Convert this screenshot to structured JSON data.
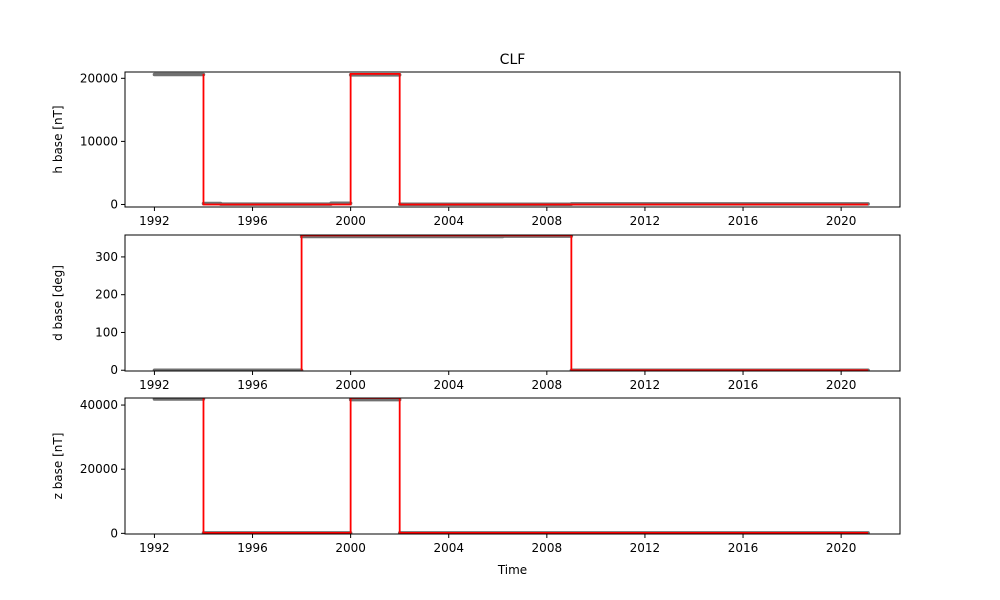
{
  "figure": {
    "title": "CLF",
    "xlabel": "Time"
  },
  "colors": {
    "measurement": "#707070",
    "baseline": "#ff0000",
    "axes": "#000000",
    "background": "#ffffff"
  },
  "chart_data": [
    {
      "type": "line",
      "title": "CLF",
      "ylabel": "h base [nT]",
      "xlabel": "",
      "xlim": [
        1990.8,
        2022.4
      ],
      "ylim": [
        -400,
        21000
      ],
      "xticks": [
        1992,
        1996,
        2000,
        2004,
        2008,
        2012,
        2016,
        2020
      ],
      "yticks": [
        0,
        10000,
        20000
      ],
      "grid": false,
      "series": [
        {
          "role": "measurement",
          "segments": [
            {
              "x": [
                1992.0,
                1994.0
              ],
              "y": [
                20600,
                20600
              ]
            },
            {
              "x": [
                1994.0,
                1994.7
              ],
              "y": [
                150,
                150
              ]
            },
            {
              "x": [
                1994.7,
                1999.2
              ],
              "y": [
                60,
                60
              ]
            },
            {
              "x": [
                1999.2,
                2000.0
              ],
              "y": [
                200,
                200
              ]
            },
            {
              "x": [
                2000.0,
                2002.0
              ],
              "y": [
                20550,
                20550
              ]
            },
            {
              "x": [
                2002.0,
                2009.0
              ],
              "y": [
                40,
                40
              ]
            },
            {
              "x": [
                2009.0,
                2021.1
              ],
              "y": [
                100,
                100
              ]
            }
          ]
        },
        {
          "role": "baseline",
          "x": [
            1994.0,
            1994.0,
            2000.0,
            2000.0,
            2002.0,
            2002.0,
            2021.1
          ],
          "y": [
            20700,
            0,
            0,
            20700,
            20700,
            0,
            0
          ]
        }
      ]
    },
    {
      "type": "line",
      "title": "",
      "ylabel": "d base [deg]",
      "xlabel": "",
      "xlim": [
        1990.8,
        2022.4
      ],
      "ylim": [
        -2,
        358
      ],
      "xticks": [
        1992,
        1996,
        2000,
        2004,
        2008,
        2012,
        2016,
        2020
      ],
      "yticks": [
        0,
        100,
        200,
        300
      ],
      "grid": false,
      "series": [
        {
          "role": "measurement",
          "segments": [
            {
              "x": [
                1992.0,
                1998.0
              ],
              "y": [
                0,
                0
              ]
            },
            {
              "x": [
                1998.0,
                2006.2
              ],
              "y": [
                354,
                354
              ]
            },
            {
              "x": [
                2006.2,
                2009.0
              ],
              "y": [
                355,
                355
              ]
            },
            {
              "x": [
                2009.0,
                2021.1
              ],
              "y": [
                0,
                0
              ]
            }
          ]
        },
        {
          "role": "baseline",
          "x": [
            1998.0,
            1998.0,
            2009.0,
            2009.0,
            2021.1
          ],
          "y": [
            0,
            357,
            357,
            0,
            0
          ]
        }
      ]
    },
    {
      "type": "line",
      "title": "",
      "ylabel": "z base [nT]",
      "xlabel": "Time",
      "xlim": [
        1990.8,
        2022.4
      ],
      "ylim": [
        -200,
        42200
      ],
      "xticks": [
        1992,
        1996,
        2000,
        2004,
        2008,
        2012,
        2016,
        2020
      ],
      "yticks": [
        0,
        20000,
        40000
      ],
      "grid": false,
      "series": [
        {
          "role": "measurement",
          "segments": [
            {
              "x": [
                1992.0,
                1994.0
              ],
              "y": [
                41900,
                41900
              ]
            },
            {
              "x": [
                1994.0,
                2000.0
              ],
              "y": [
                150,
                150
              ]
            },
            {
              "x": [
                2000.0,
                2002.0
              ],
              "y": [
                41700,
                41700
              ]
            },
            {
              "x": [
                2002.0,
                2021.1
              ],
              "y": [
                150,
                150
              ]
            }
          ]
        },
        {
          "role": "baseline",
          "x": [
            1994.0,
            1994.0,
            2000.0,
            2000.0,
            2002.0,
            2002.0,
            2021.1
          ],
          "y": [
            42200,
            150,
            150,
            42200,
            42200,
            150,
            150
          ]
        }
      ]
    }
  ]
}
